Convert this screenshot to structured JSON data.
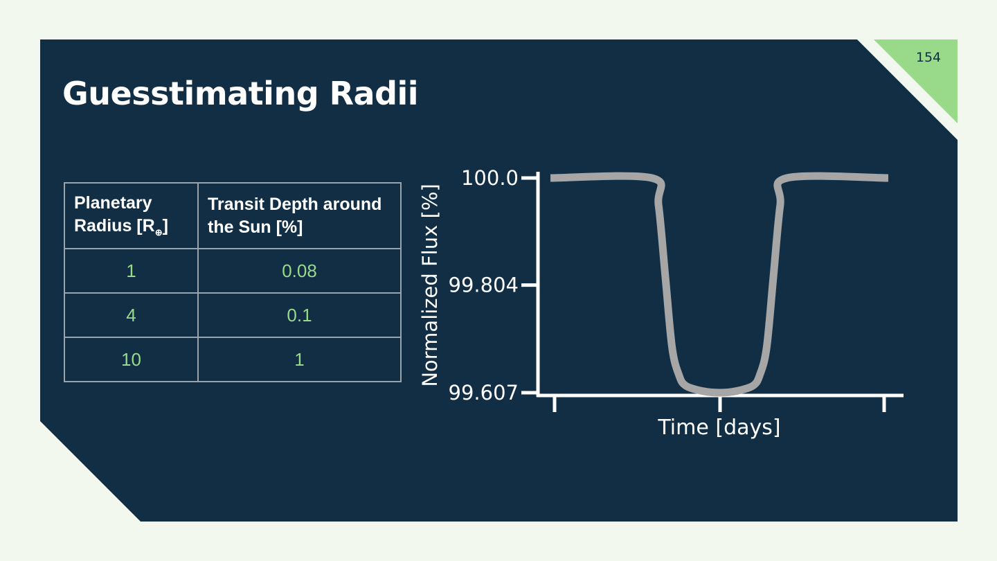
{
  "slide": {
    "title": "Guesstimating Radii",
    "page_number": "154",
    "colors": {
      "background": "#112e44",
      "accent": "#98d98a",
      "page": "#f3f8ee"
    }
  },
  "table": {
    "headers": [
      {
        "text": "Planetary Radius [R",
        "subscript": "⊕",
        "suffix": "]"
      },
      {
        "text": "Transit Depth around the Sun [%]"
      }
    ],
    "rows": [
      [
        "1",
        "0.08"
      ],
      [
        "4",
        "0.1"
      ],
      [
        "10",
        "1"
      ]
    ]
  },
  "chart_data": {
    "type": "line",
    "xlabel": "Time [days]",
    "ylabel": "Normalized Flux [%]",
    "y_ticks": [
      "100.0",
      "99.804",
      "99.607"
    ],
    "y_tick_values": [
      100.0,
      99.804,
      99.607
    ],
    "ylim": [
      99.607,
      100.0
    ],
    "x_tick_count": 3,
    "x_tick_labels": [
      "",
      "",
      ""
    ],
    "grid": false,
    "series": [
      {
        "color": "#a6a6a6",
        "x": [
          0.0,
          0.3,
          0.32,
          0.34,
          0.36,
          0.38,
          0.4,
          0.45,
          0.5,
          0.55,
          0.6,
          0.62,
          0.64,
          0.66,
          0.68,
          0.7,
          1.0
        ],
        "y": [
          100.0,
          100.0,
          99.95,
          99.82,
          99.69,
          99.64,
          99.62,
          99.61,
          99.607,
          99.61,
          99.62,
          99.64,
          99.69,
          99.82,
          99.95,
          100.0,
          100.0
        ]
      }
    ]
  }
}
